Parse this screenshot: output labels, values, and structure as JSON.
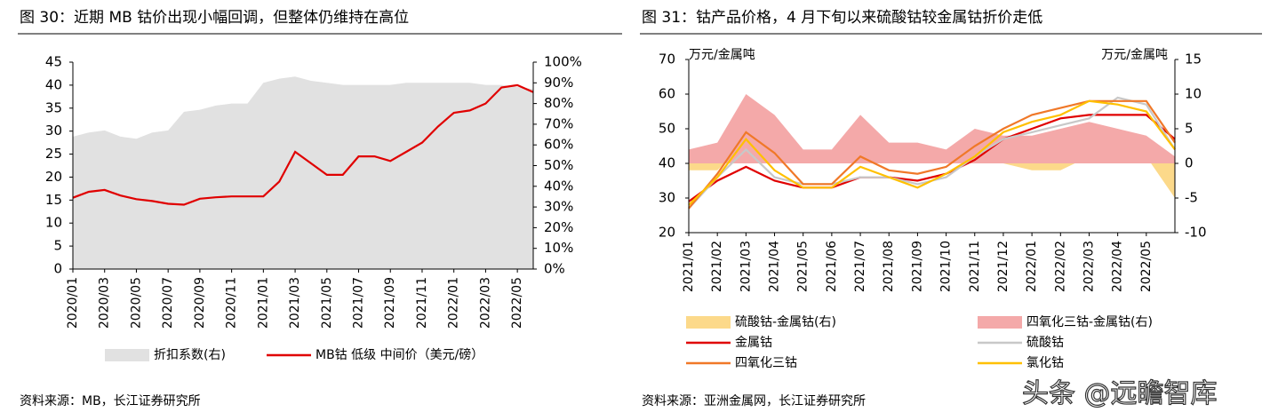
{
  "chart_data": [
    {
      "type": "line",
      "title": "图 30：近期 MB 钴价出现小幅回调，但整体仍维持在高位",
      "source": "资料来源：MB，长江证券研究所",
      "x": [
        "2020/01",
        "2020/02",
        "2020/03",
        "2020/04",
        "2020/05",
        "2020/06",
        "2020/07",
        "2020/08",
        "2020/09",
        "2020/10",
        "2020/11",
        "2020/12",
        "2021/01",
        "2021/02",
        "2021/03",
        "2021/04",
        "2021/05",
        "2021/06",
        "2021/07",
        "2021/08",
        "2021/09",
        "2021/10",
        "2021/11",
        "2021/12",
        "2022/01",
        "2022/02",
        "2022/03",
        "2022/04",
        "2022/05",
        "2022/06"
      ],
      "xticks": [
        "2020/01",
        "2020/03",
        "2020/05",
        "2020/07",
        "2020/09",
        "2020/11",
        "2021/01",
        "2021/03",
        "2021/05",
        "2021/07",
        "2021/09",
        "2021/11",
        "2022/01",
        "2022/03",
        "2022/05"
      ],
      "ylim": [
        0,
        45
      ],
      "yticks": [
        0,
        5,
        10,
        15,
        20,
        25,
        30,
        35,
        40,
        45
      ],
      "y2lim": [
        0,
        100
      ],
      "y2ticks": [
        {
          "value": 0,
          "label": "0%"
        },
        {
          "value": 10,
          "label": "10%"
        },
        {
          "value": 20,
          "label": "20%"
        },
        {
          "value": 30,
          "label": "30%"
        },
        {
          "value": 40,
          "label": "40%"
        },
        {
          "value": 50,
          "label": "50%"
        },
        {
          "value": 60,
          "label": "60%"
        },
        {
          "value": 70,
          "label": "70%"
        },
        {
          "value": 80,
          "label": "80%"
        },
        {
          "value": 90,
          "label": "90%"
        },
        {
          "value": 100,
          "label": "100%"
        }
      ],
      "series": [
        {
          "name": "折扣系数(右)",
          "style": "area",
          "axis": "y2",
          "color": "#e1e1e1",
          "values": [
            64,
            66,
            67,
            64,
            63,
            66,
            67,
            76,
            77,
            79,
            80,
            80,
            90,
            92,
            93,
            91,
            90,
            89,
            89,
            89,
            89,
            90,
            90,
            90,
            90,
            90,
            89,
            89,
            88,
            87
          ]
        },
        {
          "name": "MB钴 低级 中间价（美元/磅）",
          "style": "line",
          "color": "#e00000",
          "values": [
            15.5,
            16.8,
            17.2,
            16,
            15.2,
            14.8,
            14.2,
            14,
            15.3,
            15.6,
            15.8,
            15.8,
            15.8,
            19,
            25.5,
            23,
            20.5,
            20.5,
            24.5,
            24.5,
            23.5,
            25.5,
            27.5,
            31,
            34,
            34.5,
            36,
            39.5,
            40,
            38.5
          ]
        }
      ]
    },
    {
      "type": "line",
      "title": "图 31：钴产品价格，4 月下旬以来硫酸钴较金属钴折价走低",
      "source": "资料来源：亚洲金属网，长江证券研究所",
      "ylabel": "万元/金属吨",
      "y2label": "万元/金属吨",
      "x": [
        "2021/01",
        "2021/02",
        "2021/03",
        "2021/04",
        "2021/05",
        "2021/06",
        "2021/07",
        "2021/08",
        "2021/09",
        "2021/10",
        "2021/11",
        "2021/12",
        "2022/01",
        "2022/02",
        "2022/03",
        "2022/04",
        "2022/05",
        "2022/06"
      ],
      "xticks": [
        "2021/01",
        "2021/02",
        "2021/03",
        "2021/04",
        "2021/05",
        "2021/06",
        "2021/07",
        "2021/08",
        "2021/09",
        "2021/10",
        "2021/11",
        "2021/12",
        "2022/01",
        "2022/02",
        "2022/03",
        "2022/04",
        "2022/05"
      ],
      "ylim": [
        20,
        70
      ],
      "yticks": [
        20,
        30,
        40,
        50,
        60,
        70
      ],
      "y2lim": [
        -10,
        15
      ],
      "y2ticks": [
        -10,
        -5,
        0,
        5,
        10,
        15
      ],
      "series": [
        {
          "name": "硫酸钴-金属钴(右)",
          "style": "area",
          "axis": "y2",
          "color": "#fcd98a",
          "values": [
            -1,
            -1,
            3,
            0,
            1,
            1,
            0,
            0,
            2,
            0,
            1,
            0,
            -1,
            -1,
            1,
            3,
            1,
            -5
          ]
        },
        {
          "name": "四氧化三钴-金属钴(右)",
          "style": "area",
          "axis": "y2",
          "color": "#f4a9a9",
          "values": [
            2,
            3,
            10,
            7,
            2,
            2,
            7,
            3,
            3,
            2,
            5,
            4,
            4,
            5,
            6,
            5,
            4,
            1
          ]
        },
        {
          "name": "金属钴",
          "style": "line",
          "color": "#e00000",
          "values": [
            29,
            35,
            39,
            35,
            33,
            33,
            36,
            36,
            35,
            37,
            41,
            47,
            50,
            53,
            54,
            54,
            54,
            47
          ]
        },
        {
          "name": "硫酸钴",
          "style": "line",
          "color": "#c8c8c8",
          "values": [
            27,
            36,
            44,
            36,
            34,
            34,
            36,
            36,
            34,
            36,
            42,
            47,
            49,
            51,
            53,
            59,
            57,
            44
          ]
        },
        {
          "name": "四氧化三钴",
          "style": "line",
          "color": "#f07828",
          "values": [
            27,
            37,
            49,
            43,
            34,
            34,
            42,
            38,
            37,
            39,
            45,
            50,
            54,
            56,
            58,
            58,
            58,
            46
          ]
        },
        {
          "name": "氯化钴",
          "style": "line",
          "color": "#ffc000",
          "values": [
            28,
            36,
            47,
            38,
            33,
            33,
            39,
            36,
            33,
            37,
            42,
            49,
            52,
            54,
            58,
            57,
            55,
            44
          ]
        }
      ]
    }
  ],
  "watermark": "头条 @远瞻智库"
}
